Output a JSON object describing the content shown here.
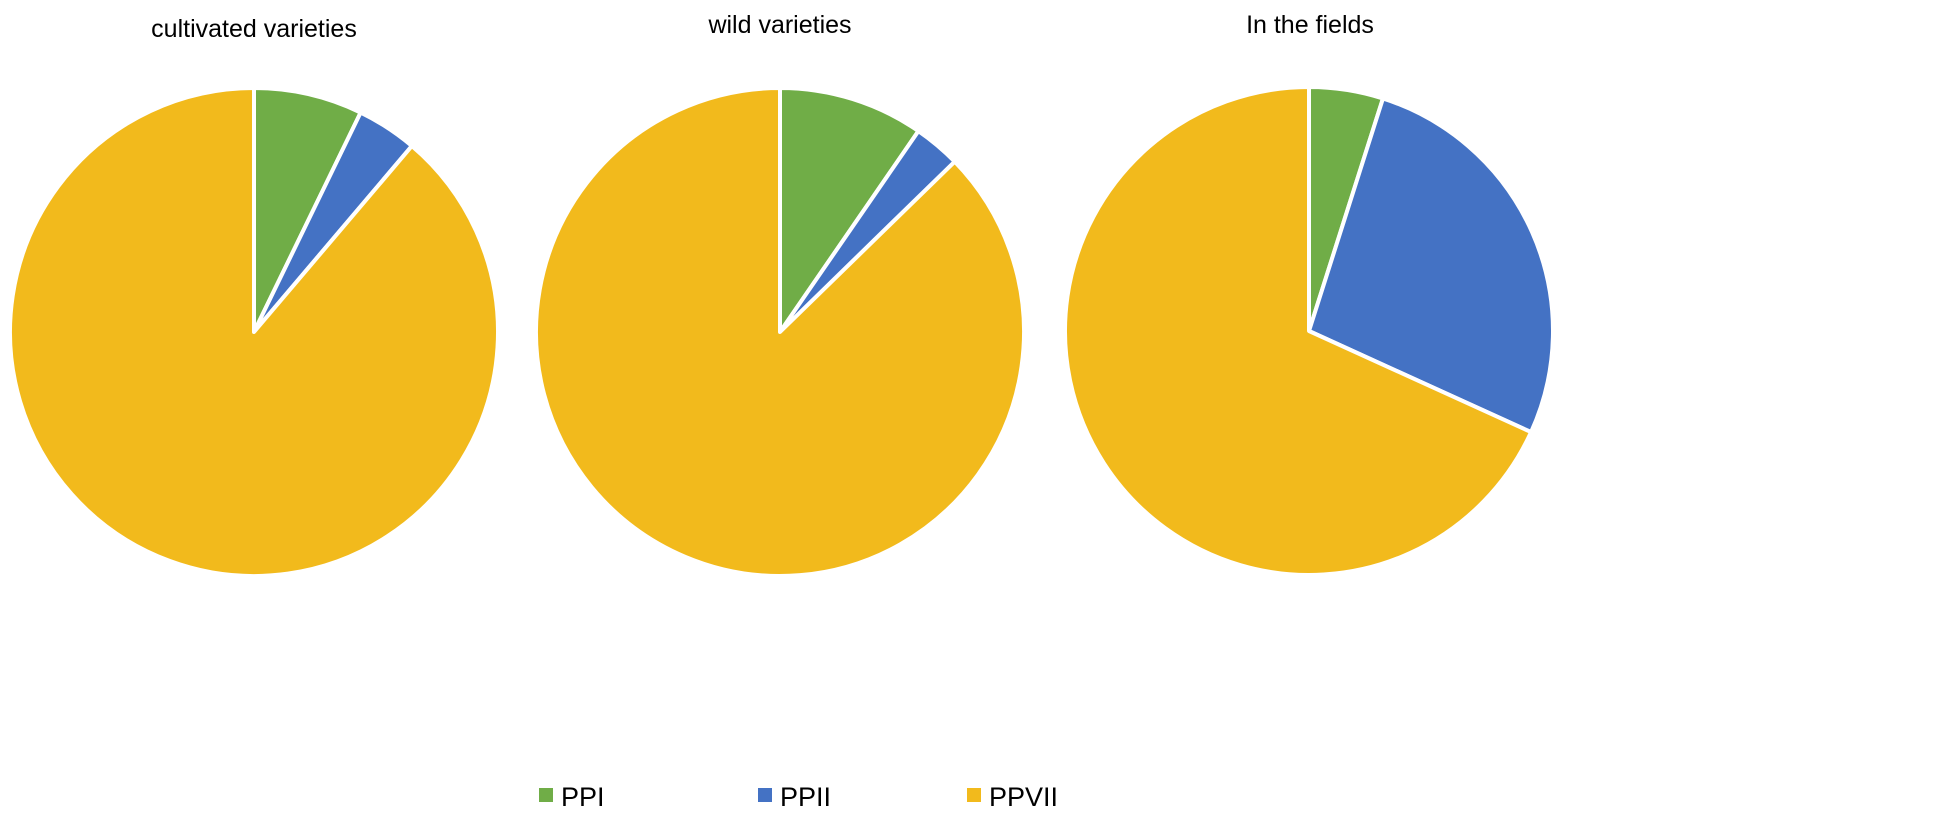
{
  "chart_data": [
    {
      "type": "pie",
      "title": "cultivated varieties",
      "categories": [
        "PPI",
        "PPII",
        "PPVII"
      ],
      "values": [
        7.2,
        4.0,
        88.8
      ]
    },
    {
      "type": "pie",
      "title": "wild varieties",
      "categories": [
        "PPI",
        "PPII",
        "PPVII"
      ],
      "values": [
        9.6,
        3.1,
        87.3
      ]
    },
    {
      "type": "pie",
      "title": "In the fields",
      "categories": [
        "PPI",
        "PPII",
        "PPVII"
      ],
      "values": [
        4.9,
        26.9,
        68.2
      ]
    }
  ],
  "legend": {
    "position": "bottom",
    "items": [
      {
        "label": "PPI",
        "color": "#70AD47"
      },
      {
        "label": "PPII",
        "color": "#4472C4"
      },
      {
        "label": "PPVII",
        "color": "#F2BA1C"
      }
    ]
  }
}
